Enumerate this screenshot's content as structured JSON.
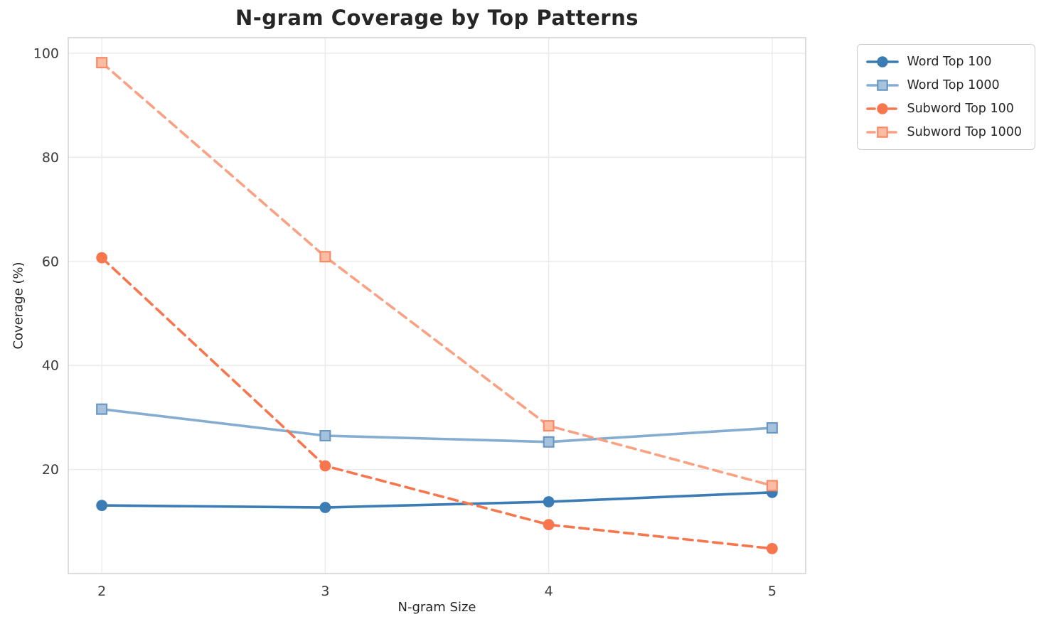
{
  "chart_data": {
    "type": "line",
    "title": "N-gram Coverage by Top Patterns",
    "xlabel": "N-gram Size",
    "ylabel": "Coverage (%)",
    "x": [
      2,
      3,
      4,
      5
    ],
    "xtick_labels": [
      "2",
      "3",
      "4",
      "5"
    ],
    "yticks": [
      20,
      40,
      60,
      80,
      100
    ],
    "xlim": [
      1.85,
      5.15
    ],
    "ylim": [
      0,
      103
    ],
    "grid": true,
    "legend_position": "upper-right-outside",
    "series": [
      {
        "name": "Word Top 100",
        "values": [
          13.1,
          12.7,
          13.8,
          15.6
        ],
        "color": "#3c7cb4",
        "linestyle": "solid",
        "marker": "circle",
        "marker_face": "#3c7cb4",
        "marker_edge": "#3c7cb4"
      },
      {
        "name": "Word Top 1000",
        "values": [
          31.6,
          26.5,
          25.3,
          28.0
        ],
        "color": "#85acd1",
        "linestyle": "solid",
        "marker": "square",
        "marker_face": "#a5c2dd",
        "marker_edge": "#6b97c4"
      },
      {
        "name": "Subword Top 100",
        "values": [
          60.7,
          20.7,
          9.4,
          4.8
        ],
        "color": "#f7764e",
        "linestyle": "dashed",
        "marker": "circle",
        "marker_face": "#f7764e",
        "marker_edge": "#f7764e"
      },
      {
        "name": "Subword Top 1000",
        "values": [
          98.2,
          60.9,
          28.4,
          16.9
        ],
        "color": "#f9a183",
        "linestyle": "dashed",
        "marker": "square",
        "marker_face": "#fbbca4",
        "marker_edge": "#f88a66"
      }
    ],
    "colors": {
      "grid": "#eaeaea",
      "spine": "#d4d4d4",
      "tick_text": "#3b3b3b",
      "title_text": "#262626"
    }
  }
}
